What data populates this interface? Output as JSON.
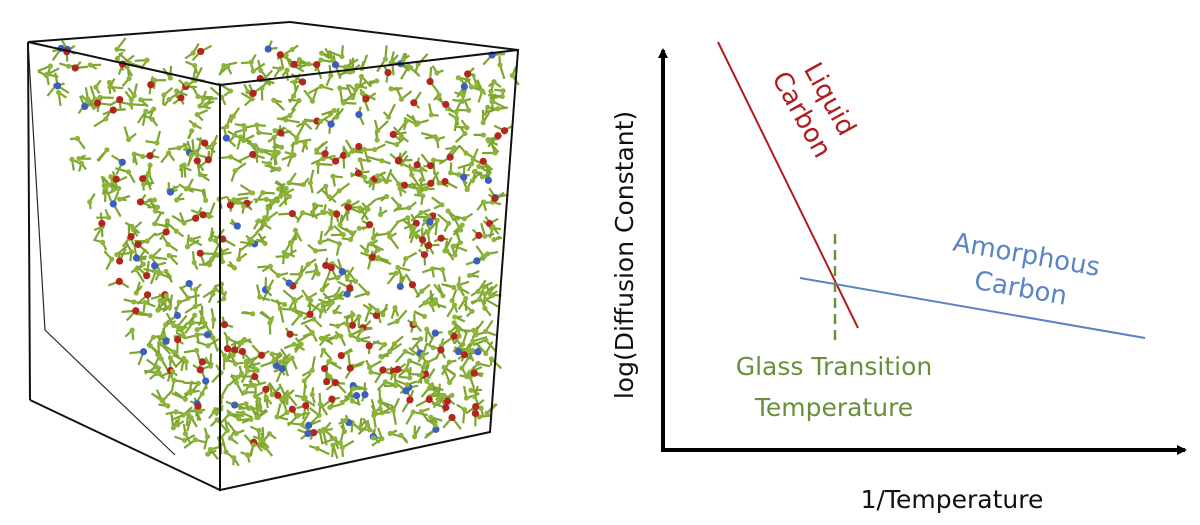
{
  "simulation_box": {
    "atom_colors": {
      "carbon": "#8db43a",
      "bond": "#7ea52e",
      "red_atom": "#b3261e",
      "blue_atom": "#3a5fc0"
    },
    "edge_color": "#111111"
  },
  "schematic": {
    "y_axis_label": "log(Diffusion Constant)",
    "x_axis_label": "1/Temperature",
    "liquid_label": [
      "Liquid",
      "Carbon"
    ],
    "amorphous_label": [
      "Amorphous",
      "Carbon"
    ],
    "glass_transition_label": [
      "Glass Transition",
      "Temperature"
    ],
    "colors": {
      "liquid": "#b01c1c",
      "amorphous": "#5b84c4",
      "glass": "#6a8f3a",
      "axis": "#000000"
    }
  }
}
